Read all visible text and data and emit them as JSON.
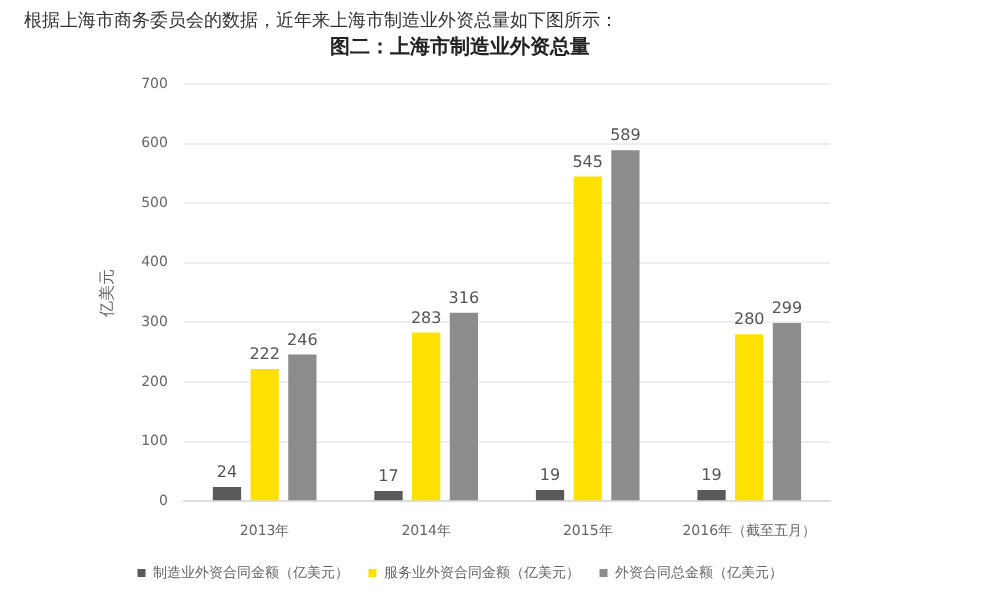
{
  "chart_data": {
    "type": "bar",
    "title": "图二：上海市制造业外资总量",
    "ylabel": "亿美元",
    "annotations": [
      "根据上海市商务委员会的数据，近年来上海市制造业外资总量如下图所示："
    ],
    "categories": [
      "2013年",
      "2014年",
      "2015年",
      "2016年（截至五月）"
    ],
    "series": [
      {
        "name": "制造业外资合同金额（亿美元）",
        "color": "#595959",
        "values": [
          24,
          17,
          19,
          19
        ]
      },
      {
        "name": "服务业外资合同金额（亿美元）",
        "color": "#ffe100",
        "values": [
          222,
          283,
          545,
          280
        ]
      },
      {
        "name": "外资合同总金额（亿美元）",
        "color": "#8c8c8c",
        "values": [
          246,
          316,
          589,
          299
        ]
      }
    ],
    "ylim": [
      0,
      700
    ],
    "yticks": [
      0,
      100,
      200,
      300,
      400,
      500,
      600,
      700
    ],
    "grid": "y",
    "legend": "bottom",
    "data_labels": true
  }
}
